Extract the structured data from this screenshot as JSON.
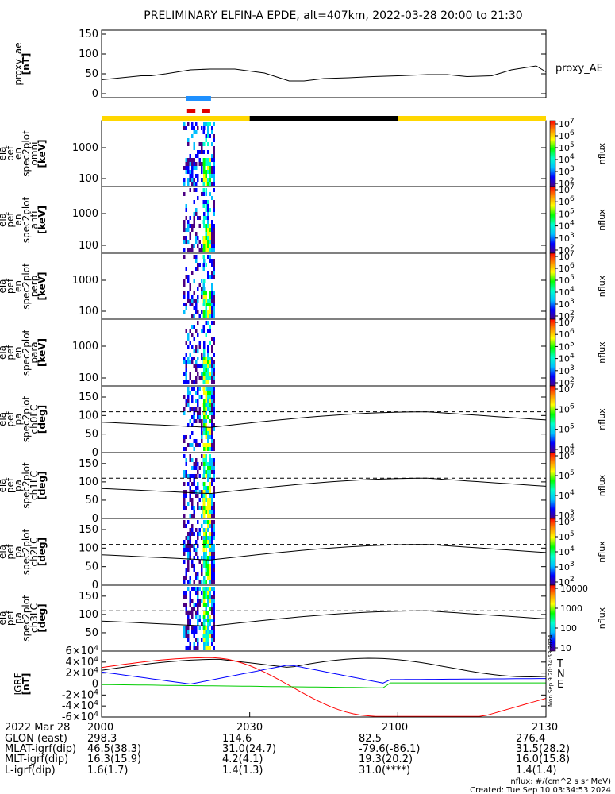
{
  "title": "PRELIMINARY ELFIN-A EPDE, alt=407km, 2022-03-28 20:00 to 21:30",
  "chart_data": [
    {
      "type": "line",
      "id": "proxy_ae",
      "ylabel": [
        "proxy_ae",
        "[nT]"
      ],
      "yticks": [
        "150",
        "100",
        "50",
        "0"
      ],
      "ylim": [
        -10,
        160
      ],
      "legend": "proxy_AE",
      "series": [
        {
          "name": "proxy_AE",
          "x": [
            0,
            4,
            8,
            10,
            13,
            18,
            22,
            27,
            33,
            38,
            41,
            45,
            50,
            55,
            60,
            66,
            70,
            74,
            79,
            83,
            88,
            90
          ],
          "values": [
            35,
            40,
            45,
            45,
            50,
            60,
            62,
            62,
            52,
            32,
            32,
            38,
            40,
            43,
            45,
            48,
            48,
            43,
            45,
            60,
            70,
            55
          ]
        }
      ]
    },
    {
      "type": "spectrogram",
      "id": "en_omni",
      "ylabel": [
        "ela",
        "pef",
        "en",
        "spec2plot",
        "omni",
        "[keV]"
      ],
      "yticks": [
        "1000",
        "100"
      ],
      "colorbar": {
        "label": "nflux",
        "ticks": [
          [
            "10",
            "7"
          ],
          [
            "10",
            "6"
          ],
          [
            "10",
            "5"
          ],
          [
            "10",
            "4"
          ],
          [
            "10",
            "3"
          ],
          [
            "10",
            "2"
          ]
        ]
      }
    },
    {
      "type": "spectrogram",
      "id": "en_anti",
      "ylabel": [
        "ela",
        "pef",
        "en",
        "spec2plot",
        "anti",
        "[keV]"
      ],
      "yticks": [
        "1000",
        "100"
      ],
      "colorbar": {
        "label": "nflux",
        "ticks": [
          [
            "10",
            "7"
          ],
          [
            "10",
            "6"
          ],
          [
            "10",
            "5"
          ],
          [
            "10",
            "4"
          ],
          [
            "10",
            "3"
          ],
          [
            "10",
            "2"
          ]
        ]
      }
    },
    {
      "type": "spectrogram",
      "id": "en_perp",
      "ylabel": [
        "ela",
        "pef",
        "en",
        "spec2plot",
        "perp",
        "[keV]"
      ],
      "yticks": [
        "1000",
        "100"
      ],
      "colorbar": {
        "label": "nflux",
        "ticks": [
          [
            "10",
            "7"
          ],
          [
            "10",
            "6"
          ],
          [
            "10",
            "5"
          ],
          [
            "10",
            "4"
          ],
          [
            "10",
            "3"
          ],
          [
            "10",
            "2"
          ]
        ]
      }
    },
    {
      "type": "spectrogram",
      "id": "en_para",
      "ylabel": [
        "ela",
        "pef",
        "en",
        "spec2plot",
        "para",
        "[keV]"
      ],
      "yticks": [
        "1000",
        "100"
      ],
      "colorbar": {
        "label": "nflux",
        "ticks": [
          [
            "10",
            "7"
          ],
          [
            "10",
            "6"
          ],
          [
            "10",
            "5"
          ],
          [
            "10",
            "4"
          ],
          [
            "10",
            "3"
          ],
          [
            "10",
            "2"
          ]
        ]
      }
    },
    {
      "type": "spectrogram",
      "id": "pa_ch0",
      "ylabel": [
        "ela",
        "pef",
        "pa",
        "spec2plot",
        "ch0LC",
        "[deg]"
      ],
      "yticks": [
        "150",
        "100",
        "50",
        "0"
      ],
      "ylim": [
        0,
        180
      ],
      "colorbar": {
        "label": "nflux",
        "ticks": [
          [
            "10",
            "7"
          ],
          [
            "10",
            "6"
          ],
          [
            "10",
            "5"
          ],
          [
            "10",
            "4"
          ]
        ]
      }
    },
    {
      "type": "spectrogram",
      "id": "pa_ch1",
      "ylabel": [
        "ela",
        "pef",
        "pa",
        "spec2plot",
        "ch1LC",
        "[deg]"
      ],
      "yticks": [
        "150",
        "100",
        "50",
        "0"
      ],
      "ylim": [
        0,
        180
      ],
      "colorbar": {
        "label": "nflux",
        "ticks": [
          [
            "10",
            "6"
          ],
          [
            "10",
            "5"
          ],
          [
            "10",
            "4"
          ],
          [
            "10",
            "3"
          ]
        ]
      }
    },
    {
      "type": "spectrogram",
      "id": "pa_ch2",
      "ylabel": [
        "ela",
        "pef",
        "pa",
        "spec2plot",
        "ch2LC",
        "[deg]"
      ],
      "yticks": [
        "150",
        "100",
        "50",
        "0"
      ],
      "ylim": [
        0,
        180
      ],
      "colorbar": {
        "label": "nflux",
        "ticks": [
          [
            "10",
            "6"
          ],
          [
            "10",
            "5"
          ],
          [
            "10",
            "4"
          ],
          [
            "10",
            "3"
          ],
          [
            "10",
            "2"
          ]
        ]
      }
    },
    {
      "type": "spectrogram",
      "id": "pa_ch3",
      "ylabel": [
        "ela",
        "pef",
        "pa",
        "spec2plot",
        "ch3LC",
        "[deg]"
      ],
      "yticks": [
        "150",
        "100",
        "50"
      ],
      "ylim": [
        0,
        180
      ],
      "colorbar": {
        "label": "nflux",
        "ticks": [
          [
            "10000",
            ""
          ],
          [
            "1000",
            ""
          ],
          [
            "100",
            ""
          ],
          [
            "10",
            ""
          ]
        ]
      }
    },
    {
      "type": "line",
      "id": "igrf",
      "ylabel": [
        "IGRF",
        "[nT]"
      ],
      "yticks": [
        [
          "6",
          "4"
        ],
        [
          "4",
          "4"
        ],
        [
          "2",
          "4"
        ],
        [
          "0",
          ""
        ],
        [
          "-2",
          "4"
        ],
        [
          "-4",
          "4"
        ],
        [
          "-6",
          "4"
        ]
      ],
      "ylim": [
        -60000,
        60000
      ],
      "legend": [
        "T",
        "N",
        "E"
      ],
      "colors": [
        "#000000",
        "#ff0000",
        "#0000ff",
        "#00cc00"
      ]
    }
  ],
  "bars": {
    "science_zones": [
      {
        "x0": 17,
        "x1": 22,
        "color": "#1e90ff"
      }
    ],
    "fgm_zones": [
      {
        "x0": 17,
        "x1": 19,
        "color": "#e00000"
      },
      {
        "x0": 20,
        "x1": 22,
        "color": "#e00000"
      }
    ],
    "shadow": [
      {
        "x0": 0,
        "x1": 30,
        "color": "#ffd700"
      },
      {
        "x0": 30,
        "x1": 60,
        "color": "#000000"
      },
      {
        "x0": 60,
        "x1": 90,
        "color": "#ffd700"
      }
    ]
  },
  "xticks": [
    "2000",
    "2030",
    "2100",
    "2130"
  ],
  "footer": {
    "labels": [
      "2022 Mar 28",
      "GLON (east)",
      "MLAT-igrf(dip)",
      "MLT-igrf(dip)",
      "L-igrf(dip)"
    ],
    "col1": [
      "",
      "298.3",
      "46.5(38.3)",
      "16.3(15.9)",
      "1.6(1.7)"
    ],
    "col2": [
      "",
      "114.6",
      "31.0(24.7)",
      "4.2(4.1)",
      "1.4(1.3)"
    ],
    "col3": [
      "",
      "82.5",
      "-79.6(-86.1)",
      "19.3(20.2)",
      "31.0(****)"
    ],
    "col4": [
      "",
      "276.4",
      "31.5(28.2)",
      "16.0(15.8)",
      "1.4(1.4)"
    ],
    "units_note": "nflux: #/(cm^2 s sr MeV)",
    "created": "Created: Tue Sep 10 03:34:53 2024",
    "side_stamp": "Mon Sep 9 20:34:53 2024"
  }
}
